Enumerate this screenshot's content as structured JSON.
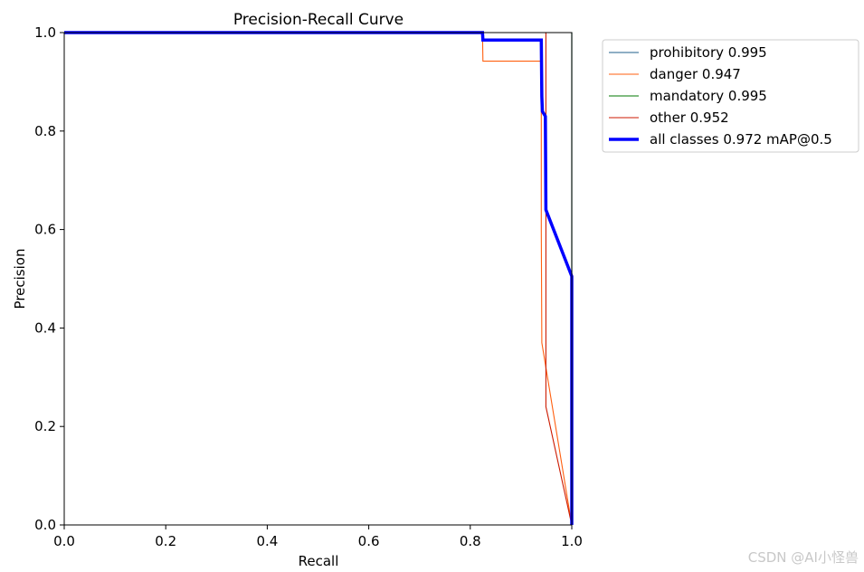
{
  "watermark": "CSDN @AI小怪兽",
  "chart_data": {
    "type": "line",
    "title": "Precision-Recall Curve",
    "xlabel": "Recall",
    "ylabel": "Precision",
    "xlim": [
      0,
      1
    ],
    "ylim": [
      0,
      1
    ],
    "xticks": [
      "0.0",
      "0.2",
      "0.4",
      "0.6",
      "0.8",
      "1.0"
    ],
    "yticks": [
      "0.0",
      "0.2",
      "0.4",
      "0.6",
      "0.8",
      "1.0"
    ],
    "grid": false,
    "legend_position": "outside-top-right",
    "series": [
      {
        "name": "prohibitory 0.995",
        "color": "#1f5f8b",
        "width": "thin",
        "x": [
          0,
          1.0,
          1.0,
          1.0
        ],
        "y": [
          1.0,
          1.0,
          0.5,
          0.0
        ]
      },
      {
        "name": "danger 0.947",
        "color": "#ff5f0f",
        "width": "thin",
        "x": [
          0,
          0.824,
          0.825,
          0.94,
          0.94,
          0.941,
          1.0
        ],
        "y": [
          1.0,
          1.0,
          0.942,
          0.942,
          0.6,
          0.37,
          0.0
        ]
      },
      {
        "name": "mandatory 0.995",
        "color": "#007a00",
        "width": "thin",
        "x": [
          0,
          1.0,
          1.0
        ],
        "y": [
          1.0,
          1.0,
          0.0
        ]
      },
      {
        "name": "other 0.952",
        "color": "#cc1a00",
        "width": "thin",
        "x": [
          0,
          0.949,
          0.949,
          0.949,
          1.0
        ],
        "y": [
          1.0,
          1.0,
          1.0,
          0.24,
          0.0
        ]
      },
      {
        "name": "all classes 0.972 mAP@0.5",
        "color": "#0000ff",
        "width": "thick",
        "x": [
          0,
          0.824,
          0.825,
          0.94,
          0.941,
          0.942,
          0.948,
          0.949,
          1.0,
          1.0
        ],
        "y": [
          1.0,
          1.0,
          0.985,
          0.985,
          0.87,
          0.84,
          0.83,
          0.64,
          0.505,
          0.0
        ]
      }
    ]
  }
}
